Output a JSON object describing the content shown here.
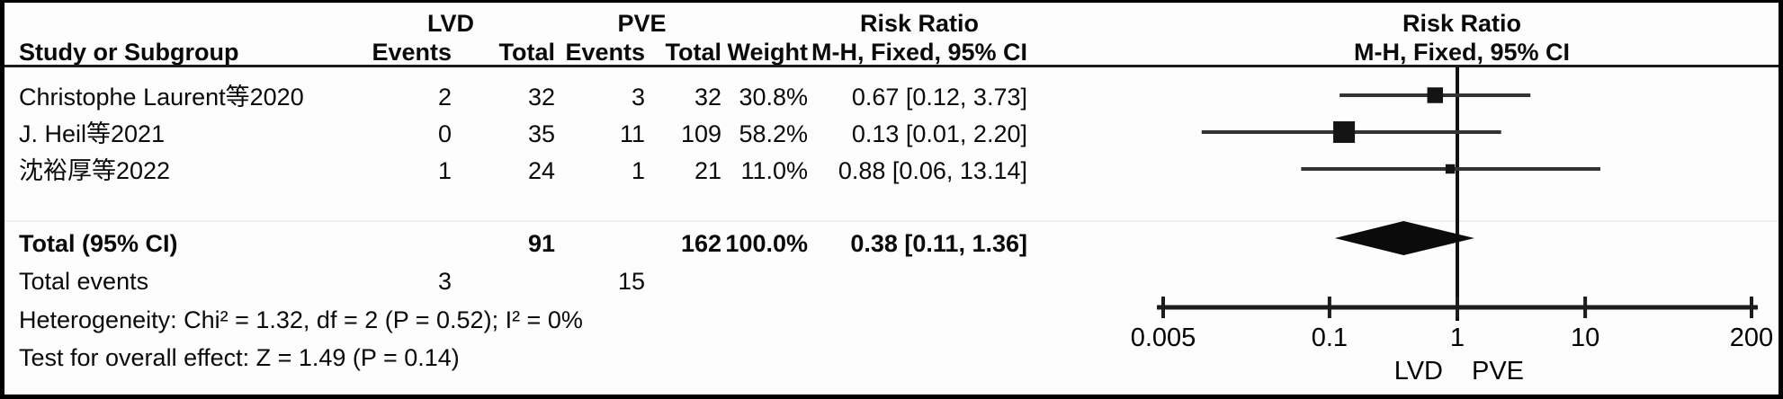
{
  "header": {
    "group1": "LVD",
    "group2": "PVE",
    "risk_ratio": "Risk Ratio",
    "study_col": "Study or Subgroup",
    "events_col": "Events",
    "total_col": "Total",
    "weight_col": "Weight",
    "method_col": "M-H, Fixed, 95% CI"
  },
  "table": {
    "rows": [
      {
        "name": "Christophe Laurent等2020",
        "lvd_events": "2",
        "lvd_total": "32",
        "pve_events": "3",
        "pve_total": "32",
        "weight": "30.8%",
        "rr_text": "0.67 [0.12, 3.73]"
      },
      {
        "name": "J. Heil等2021",
        "lvd_events": "0",
        "lvd_total": "35",
        "pve_events": "11",
        "pve_total": "109",
        "weight": "58.2%",
        "rr_text": "0.13 [0.01, 2.20]"
      },
      {
        "name": "沈裕厚等2022",
        "lvd_events": "1",
        "lvd_total": "24",
        "pve_events": "1",
        "pve_total": "21",
        "weight": "11.0%",
        "rr_text": "0.88 [0.06, 13.14]"
      }
    ],
    "total_row": {
      "label": "Total (95% CI)",
      "lvd_total": "91",
      "pve_total": "162",
      "weight": "100.0%",
      "rr_text": "0.38 [0.11, 1.36]"
    },
    "total_events_row": {
      "label": "Total events",
      "lvd_events": "3",
      "pve_events": "15"
    }
  },
  "footnotes": {
    "heterogeneity": "Heterogeneity: Chi² = 1.32, df = 2 (P = 0.52); I² = 0%",
    "overall_effect": "Test for overall effect: Z = 1.49 (P = 0.14)"
  },
  "chart_data": {
    "type": "scatter",
    "subtype": "forest-plot",
    "title": "Risk Ratio",
    "method_label": "M-H, Fixed, 95% CI",
    "x_scale": "log",
    "x_range": [
      0.005,
      200
    ],
    "axis_ticks": [
      0.005,
      0.1,
      1,
      10,
      200
    ],
    "axis_tick_labels": [
      "0.005",
      "0.1",
      "1",
      "10",
      "200"
    ],
    "null_line": 1,
    "favours_left_label": "LVD",
    "favours_right_label": "PVE",
    "studies": [
      {
        "name": "Christophe Laurent等2020",
        "rr": 0.67,
        "ci_low": 0.12,
        "ci_high": 3.73,
        "weight_pct": 30.8
      },
      {
        "name": "J. Heil等2021",
        "rr": 0.13,
        "ci_low": 0.01,
        "ci_high": 2.2,
        "weight_pct": 58.2
      },
      {
        "name": "沈裕厚等2022",
        "rr": 0.88,
        "ci_low": 0.06,
        "ci_high": 13.14,
        "weight_pct": 11.0
      }
    ],
    "total": {
      "rr": 0.38,
      "ci_low": 0.11,
      "ci_high": 1.36
    },
    "marker_color": "#141414",
    "line_color": "#333333"
  }
}
